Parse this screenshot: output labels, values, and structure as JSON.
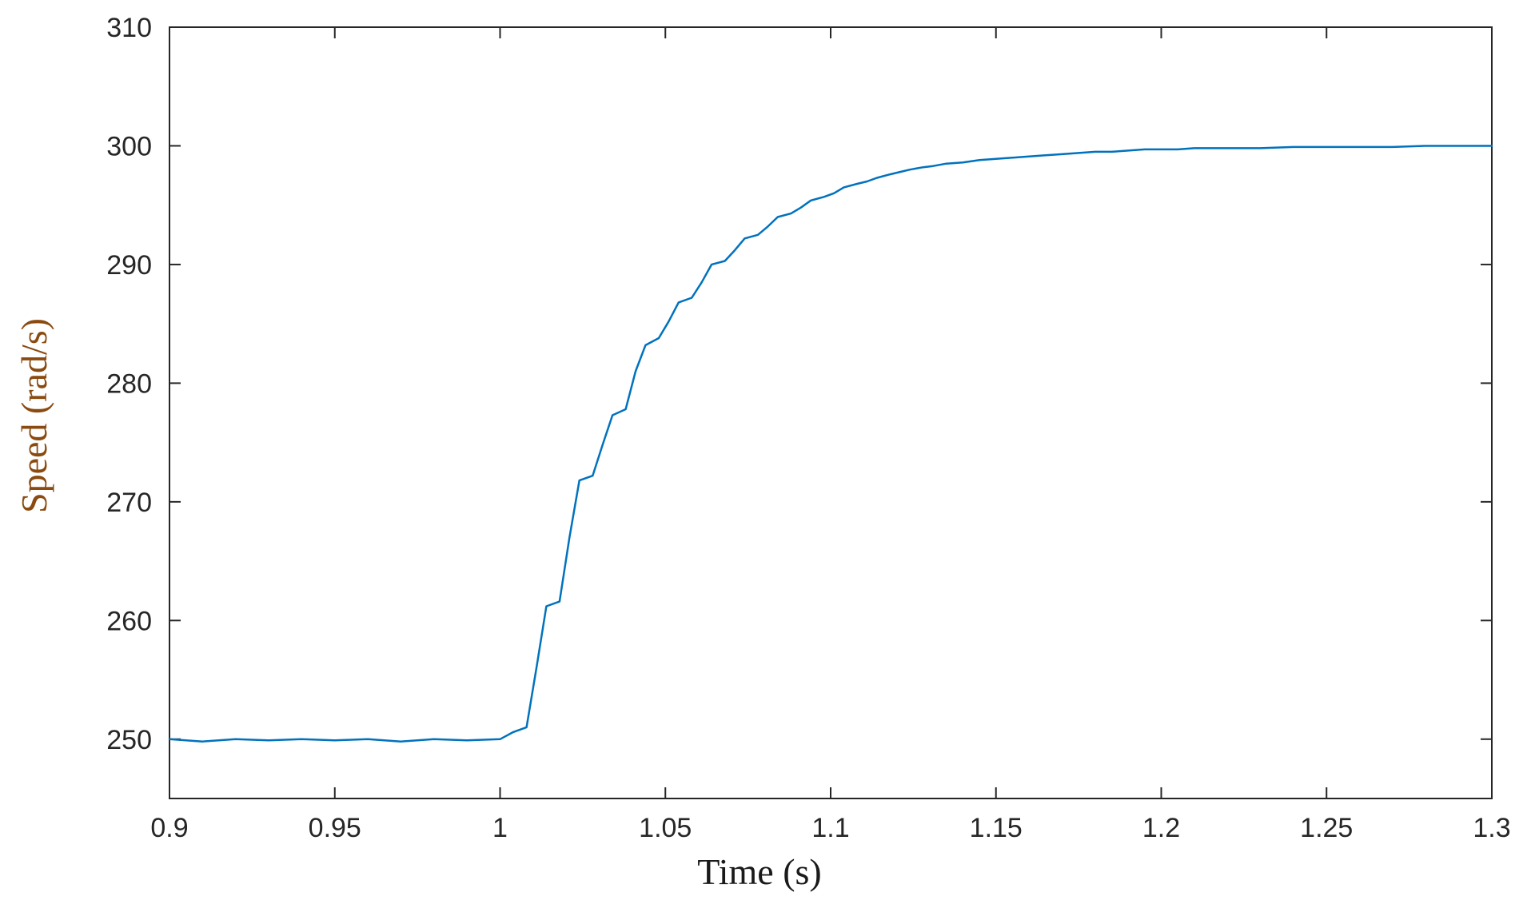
{
  "chart_data": {
    "type": "line",
    "title": "",
    "xlabel": "Time (s)",
    "ylabel": "Speed (rad/s)",
    "xlim": [
      0.9,
      1.3
    ],
    "ylim": [
      245,
      310
    ],
    "xticks": [
      0.9,
      0.95,
      1.0,
      1.05,
      1.1,
      1.15,
      1.2,
      1.25,
      1.3
    ],
    "xtick_labels": [
      "0.9",
      "0.95",
      "1",
      "1.05",
      "1.1",
      "1.15",
      "1.2",
      "1.25",
      "1.3"
    ],
    "yticks": [
      250,
      260,
      270,
      280,
      290,
      300,
      310
    ],
    "ytick_labels": [
      "250",
      "260",
      "270",
      "280",
      "290",
      "300",
      "310"
    ],
    "grid": false,
    "legend": "none",
    "colors": {
      "line": "#0072BD",
      "axis": "#262626",
      "ylabel": "#8a4a10"
    },
    "series": [
      {
        "values": [
          [
            0.9,
            250.0
          ],
          [
            0.91,
            249.8
          ],
          [
            0.92,
            250.0
          ],
          [
            0.93,
            249.9
          ],
          [
            0.94,
            250.0
          ],
          [
            0.95,
            249.9
          ],
          [
            0.96,
            250.0
          ],
          [
            0.97,
            249.8
          ],
          [
            0.98,
            250.0
          ],
          [
            0.99,
            249.9
          ],
          [
            1.0,
            250.0
          ],
          [
            1.004,
            250.6
          ],
          [
            1.008,
            251.0
          ],
          [
            1.011,
            256.0
          ],
          [
            1.014,
            261.2
          ],
          [
            1.018,
            261.6
          ],
          [
            1.021,
            267.0
          ],
          [
            1.024,
            271.8
          ],
          [
            1.028,
            272.2
          ],
          [
            1.031,
            274.8
          ],
          [
            1.034,
            277.3
          ],
          [
            1.038,
            277.8
          ],
          [
            1.041,
            281.0
          ],
          [
            1.044,
            283.2
          ],
          [
            1.048,
            283.8
          ],
          [
            1.051,
            285.2
          ],
          [
            1.054,
            286.8
          ],
          [
            1.058,
            287.2
          ],
          [
            1.061,
            288.5
          ],
          [
            1.064,
            290.0
          ],
          [
            1.068,
            290.3
          ],
          [
            1.071,
            291.2
          ],
          [
            1.074,
            292.2
          ],
          [
            1.078,
            292.5
          ],
          [
            1.081,
            293.2
          ],
          [
            1.084,
            294.0
          ],
          [
            1.088,
            294.3
          ],
          [
            1.091,
            294.8
          ],
          [
            1.094,
            295.4
          ],
          [
            1.098,
            295.7
          ],
          [
            1.101,
            296.0
          ],
          [
            1.104,
            296.5
          ],
          [
            1.108,
            296.8
          ],
          [
            1.111,
            297.0
          ],
          [
            1.114,
            297.3
          ],
          [
            1.118,
            297.6
          ],
          [
            1.121,
            297.8
          ],
          [
            1.124,
            298.0
          ],
          [
            1.128,
            298.2
          ],
          [
            1.131,
            298.3
          ],
          [
            1.135,
            298.5
          ],
          [
            1.14,
            298.6
          ],
          [
            1.145,
            298.8
          ],
          [
            1.15,
            298.9
          ],
          [
            1.155,
            299.0
          ],
          [
            1.16,
            299.1
          ],
          [
            1.165,
            299.2
          ],
          [
            1.17,
            299.3
          ],
          [
            1.175,
            299.4
          ],
          [
            1.18,
            299.5
          ],
          [
            1.185,
            299.5
          ],
          [
            1.19,
            299.6
          ],
          [
            1.195,
            299.7
          ],
          [
            1.2,
            299.7
          ],
          [
            1.205,
            299.7
          ],
          [
            1.21,
            299.8
          ],
          [
            1.22,
            299.8
          ],
          [
            1.23,
            299.8
          ],
          [
            1.24,
            299.9
          ],
          [
            1.25,
            299.9
          ],
          [
            1.26,
            299.9
          ],
          [
            1.27,
            299.9
          ],
          [
            1.28,
            300.0
          ],
          [
            1.29,
            300.0
          ],
          [
            1.3,
            300.0
          ]
        ]
      }
    ]
  }
}
